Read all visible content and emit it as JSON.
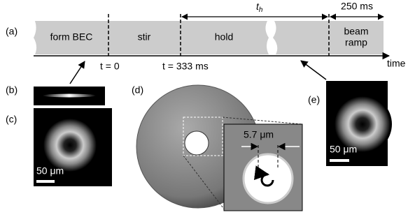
{
  "panels": {
    "a": "(a)",
    "b": "(b)",
    "c": "(c)",
    "d": "(d)",
    "e": "(e)"
  },
  "timeline": {
    "stages": [
      "form BEC",
      "stir",
      "hold"
    ],
    "beam_ramp": [
      "beam",
      "ramp"
    ],
    "axis_label": "time",
    "markers": [
      "t = 0",
      "t = 333 ms"
    ],
    "hold_time": {
      "symbol": "t",
      "subscript": "h"
    },
    "ramp_time": "250 ms"
  },
  "scale_bars": {
    "c": "50 μm",
    "e": "50 μm"
  },
  "inset": {
    "hole_size": "5.7 μm"
  }
}
